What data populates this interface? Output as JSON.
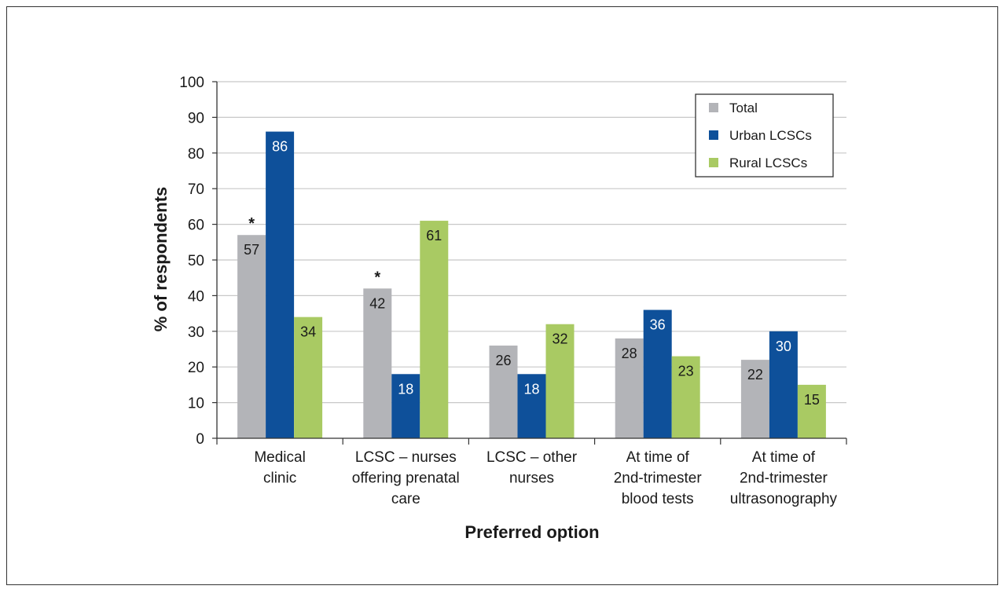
{
  "chart_data": {
    "type": "bar",
    "title": "",
    "xlabel": "Preferred option",
    "ylabel": "% of respondents",
    "ylim": [
      0,
      100
    ],
    "yticks": [
      0,
      10,
      20,
      30,
      40,
      50,
      60,
      70,
      80,
      90,
      100
    ],
    "grid": true,
    "legend_position": "top-right",
    "categories": [
      [
        "Medical",
        "clinic"
      ],
      [
        "LCSC – nurses",
        "offering prenatal",
        "care"
      ],
      [
        "LCSC – other",
        "nurses"
      ],
      [
        "At time of",
        "2nd-trimester",
        "blood tests"
      ],
      [
        "At time of",
        "2nd-trimester",
        "ultrasonography"
      ]
    ],
    "series": [
      {
        "name": "Total",
        "color": "#b3b4b8",
        "label_color": "#1a1a1a",
        "values": [
          57,
          42,
          26,
          28,
          22
        ]
      },
      {
        "name": "Urban LCSCs",
        "color": "#0e509a",
        "label_color": "#ffffff",
        "values": [
          86,
          18,
          18,
          36,
          30
        ]
      },
      {
        "name": "Rural LCSCs",
        "color": "#a9ca63",
        "label_color": "#1a1a1a",
        "values": [
          34,
          61,
          32,
          23,
          15
        ]
      }
    ],
    "annotations": [
      {
        "text": "*",
        "series": 0,
        "category": 0
      },
      {
        "text": "*",
        "series": 0,
        "category": 1
      }
    ]
  }
}
